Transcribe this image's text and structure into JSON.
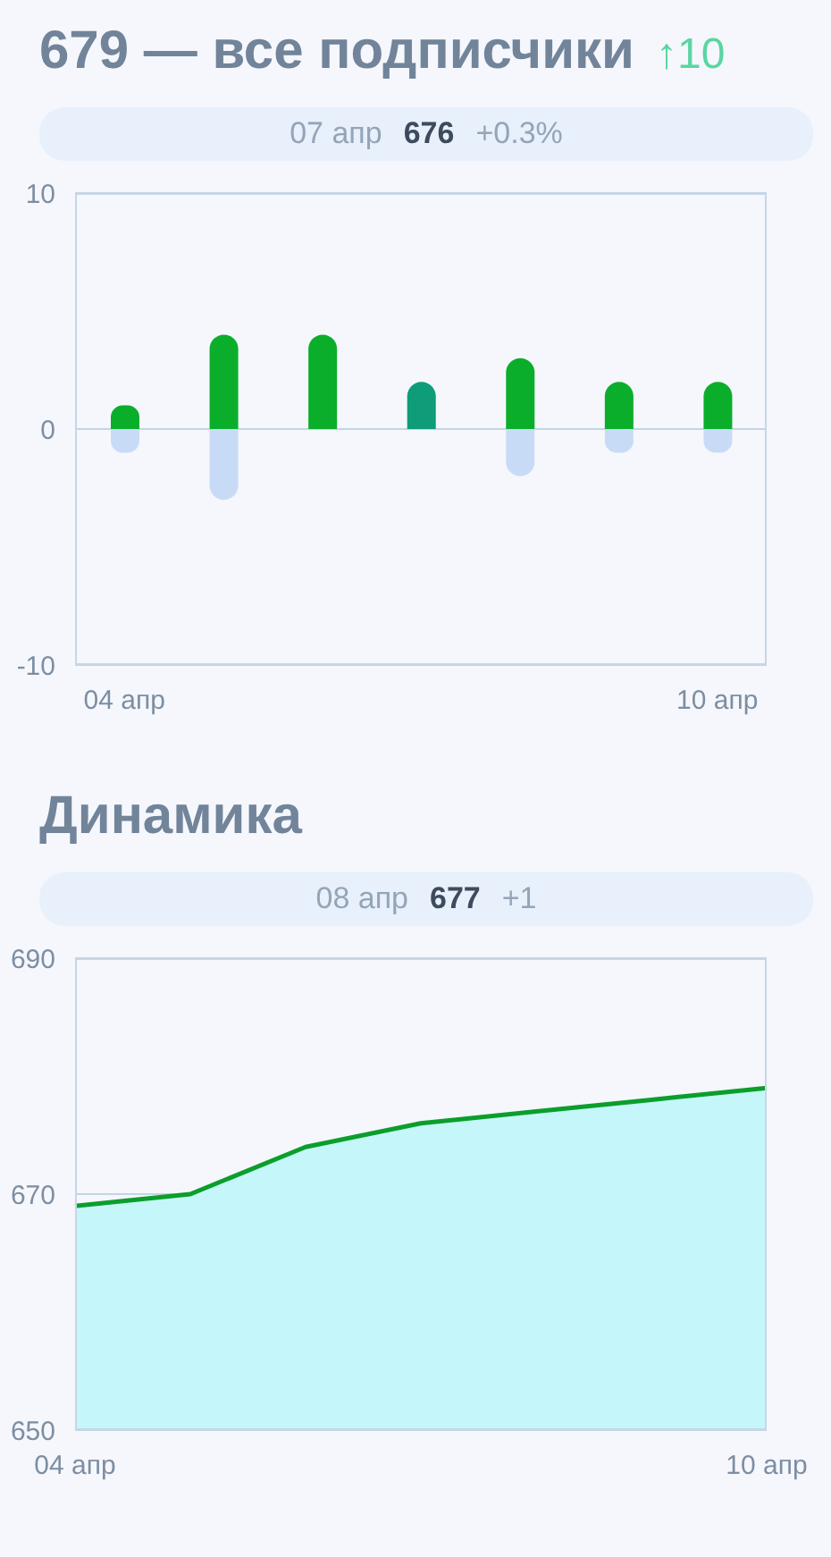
{
  "chart_data": [
    {
      "type": "bar",
      "title": "679 — все подписчики",
      "subtitle": "↑10",
      "annotations": [
        "07 апр",
        "676",
        "+0.3%"
      ],
      "categories": [
        "04 апр",
        null,
        null,
        null,
        null,
        null,
        "10 апр"
      ],
      "series": [
        {
          "color": "#0aae2b",
          "colors": [
            "#0aae2b",
            "#0aae2b",
            "#0aae2b",
            "#0e9c79",
            "#0aae2b",
            "#0aae2b",
            "#0aae2b"
          ],
          "values": [
            1,
            4,
            4,
            2,
            3,
            2,
            2
          ]
        },
        {
          "color": "#c8dbf6",
          "values": [
            -1,
            -3,
            0,
            0,
            -2,
            -1,
            -1
          ]
        }
      ],
      "stacked": true,
      "ylim": [
        -10,
        10
      ],
      "yticks": [
        -10,
        0,
        10
      ],
      "grid": "y"
    },
    {
      "type": "area",
      "title": "Динамика",
      "annotations": [
        "08 апр",
        "677",
        "+1"
      ],
      "categories": [
        "04 апр",
        null,
        null,
        null,
        null,
        null,
        "10 апр"
      ],
      "series": [
        {
          "color": "#0b9e2c",
          "values": [
            669,
            670,
            674,
            676,
            677,
            678,
            679
          ]
        }
      ],
      "ylim": [
        650,
        690
      ],
      "yticks": [
        650,
        670,
        690
      ],
      "grid": "y"
    }
  ]
}
